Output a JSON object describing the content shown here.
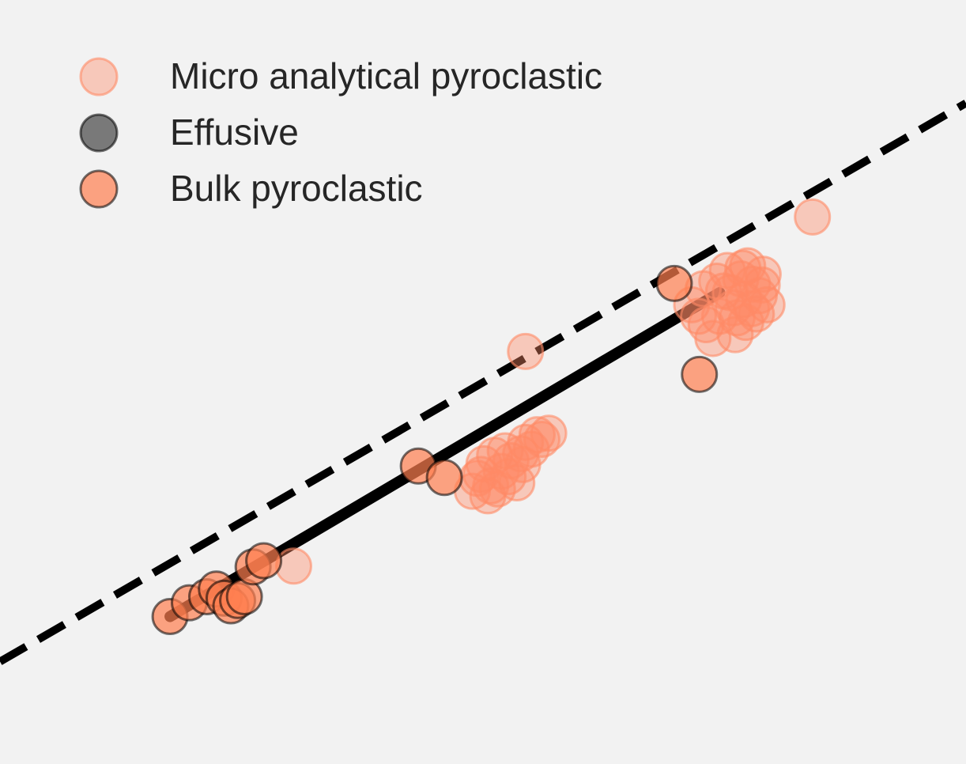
{
  "chart_data": {
    "type": "scatter",
    "title": "",
    "xlabel": "",
    "ylabel": "",
    "xlim": [
      0,
      100
    ],
    "ylim": [
      0,
      100
    ],
    "grid": false,
    "legend_placement": "top-left",
    "legend": [
      {
        "label": "Micro analytical pyroclastic",
        "color": "#ff8a66",
        "edge": "#ff8a66",
        "opacity": 0.4
      },
      {
        "label": "Effusive",
        "color": "#000000",
        "edge": "#000000",
        "opacity": 0.5
      },
      {
        "label": "Bulk pyroclastic",
        "color": "#ff7f50",
        "edge": "#000000",
        "opacity": 0.7
      }
    ],
    "series": [
      {
        "name": "Micro analytical pyroclastic",
        "color": "#ff8a66",
        "edge": "#ff8a66",
        "opacity": 0.4,
        "points": [
          [
            30.4,
            25.9
          ],
          [
            54.4,
            54.0
          ],
          [
            84.1,
            71.6
          ],
          [
            71.6,
            60.1
          ],
          [
            72.8,
            62.2
          ],
          [
            73.1,
            57.5
          ],
          [
            73.8,
            55.7
          ],
          [
            74.5,
            58.6
          ],
          [
            74.9,
            61.9
          ],
          [
            75.3,
            64.6
          ],
          [
            75.9,
            59.7
          ],
          [
            76.1,
            56.2
          ],
          [
            76.7,
            63.5
          ],
          [
            77.0,
            60.8
          ],
          [
            77.4,
            65.2
          ],
          [
            77.9,
            62.8
          ],
          [
            78.3,
            58.9
          ],
          [
            78.6,
            61.3
          ],
          [
            79.0,
            64.1
          ],
          [
            79.4,
            60.1
          ],
          [
            74.2,
            63.2
          ],
          [
            76.3,
            58.4
          ],
          [
            77.8,
            59.6
          ],
          [
            75.6,
            61.7
          ],
          [
            78.9,
            62.7
          ],
          [
            72.3,
            58.6
          ],
          [
            76.9,
            64.9
          ],
          [
            77.2,
            57.8
          ],
          [
            48.9,
            35.7
          ],
          [
            49.4,
            37.4
          ],
          [
            50.1,
            39.3
          ],
          [
            50.8,
            36.4
          ],
          [
            51.2,
            40.4
          ],
          [
            51.9,
            38.3
          ],
          [
            52.3,
            41.0
          ],
          [
            52.9,
            39.7
          ],
          [
            53.5,
            36.8
          ],
          [
            53.9,
            40.6
          ],
          [
            54.4,
            42.1
          ],
          [
            55.0,
            41.2
          ],
          [
            55.6,
            43.1
          ],
          [
            56.1,
            42.5
          ],
          [
            56.8,
            43.3
          ],
          [
            49.8,
            37.9
          ],
          [
            50.5,
            35.1
          ],
          [
            52.6,
            37.6
          ],
          [
            54.1,
            39.2
          ],
          [
            51.5,
            36.0
          ]
        ]
      },
      {
        "name": "Effusive",
        "color": "#000000",
        "edge": "#000000",
        "opacity": 0.5,
        "points": []
      },
      {
        "name": "Bulk pyroclastic",
        "color": "#ff7f50",
        "edge": "#000000",
        "opacity": 0.7,
        "points": [
          [
            17.6,
            19.3
          ],
          [
            19.6,
            21.1
          ],
          [
            21.4,
            21.9
          ],
          [
            22.4,
            22.9
          ],
          [
            23.2,
            21.7
          ],
          [
            23.9,
            20.7
          ],
          [
            24.6,
            21.4
          ],
          [
            25.3,
            21.9
          ],
          [
            26.2,
            25.8
          ],
          [
            27.3,
            26.6
          ],
          [
            43.3,
            39.0
          ],
          [
            46.0,
            37.5
          ],
          [
            69.8,
            62.9
          ],
          [
            72.4,
            51.0
          ]
        ]
      }
    ],
    "lines": [
      {
        "style": "dashed",
        "color": "#000000",
        "from": [
          0,
          13.4
        ],
        "to": [
          100,
          86.5
        ]
      },
      {
        "style": "solid",
        "color": "#000000",
        "from": [
          17.6,
          19.3
        ],
        "to": [
          74.5,
          61.7
        ]
      }
    ]
  }
}
